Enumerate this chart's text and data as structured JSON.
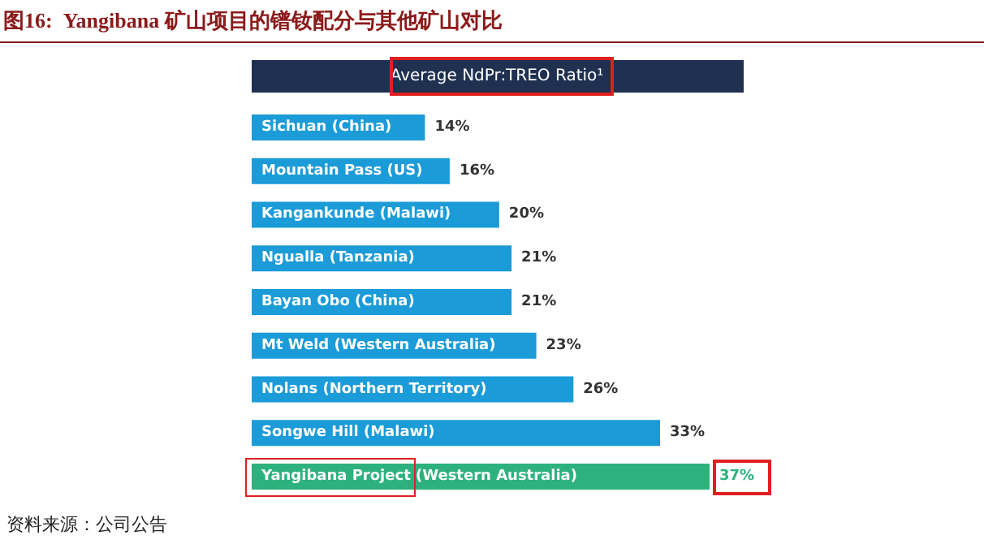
{
  "chart_data": {
    "type": "bar",
    "orientation": "horizontal",
    "title": "图16:  Yangibana 矿山项目的镨钕配分与其他矿山对比",
    "subtitle": "Average NdPr:TREO Ratio¹",
    "annotations": [
      "资料来源：公司公告"
    ],
    "categories": [
      "Sichuan (China)",
      "Mountain Pass (US)",
      "Kangankunde (Malawi)",
      "Ngualla (Tanzania)",
      "Bayan Obo (China)",
      "Mt Weld (Western Australia)",
      "Nolans (Northern Territory)",
      "Songwe Hill (Malawi)",
      "Yangibana Project (Western Australia)"
    ],
    "values": [
      14,
      16,
      20,
      21,
      21,
      23,
      26,
      33,
      37
    ],
    "value_labels": [
      "14%",
      "16%",
      "20%",
      "21%",
      "21%",
      "23%",
      "26%",
      "33%",
      "37%"
    ],
    "colors": [
      "#1b9bd7",
      "#1b9bd7",
      "#1b9bd7",
      "#1b9bd7",
      "#1b9bd7",
      "#1b9bd7",
      "#1b9bd7",
      "#1b9bd7",
      "#2db27d"
    ]
  }
}
